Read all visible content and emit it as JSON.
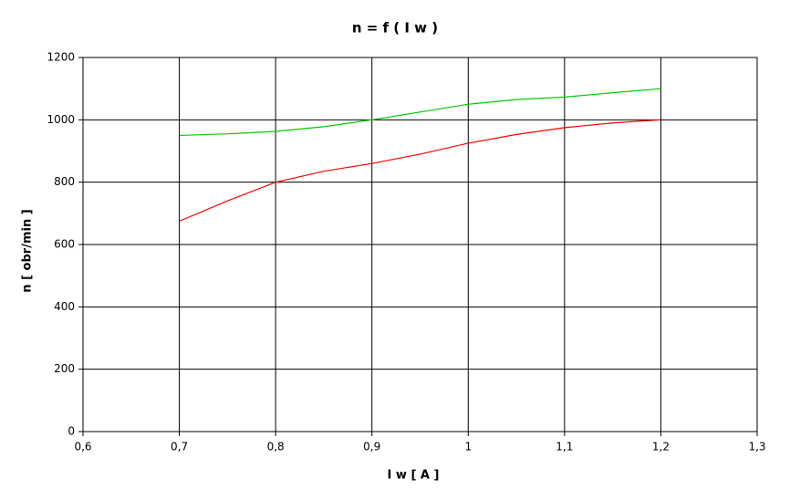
{
  "chart_data": {
    "type": "line",
    "title": "n = f ( I w )",
    "x_label": "I w [ A ]",
    "y_label": "n [ obr/min ]",
    "x": [
      0.7,
      0.75,
      0.8,
      0.85,
      0.9,
      0.95,
      1.0,
      1.05,
      1.1,
      1.15,
      1.2
    ],
    "series": [
      {
        "color": "#00cc00",
        "values": [
          950,
          955,
          963,
          978,
          1000,
          1025,
          1050,
          1065,
          1073,
          1087,
          1100
        ]
      },
      {
        "color": "#ff0000",
        "values": [
          675,
          740,
          800,
          835,
          860,
          890,
          925,
          953,
          975,
          990,
          1000
        ]
      }
    ],
    "xlim": [
      0.6,
      1.3
    ],
    "xticks": [
      {
        "value": 0.6,
        "label": "0,6"
      },
      {
        "value": 0.7,
        "label": "0,7"
      },
      {
        "value": 0.8,
        "label": "0,8"
      },
      {
        "value": 0.9,
        "label": "0,9"
      },
      1,
      {
        "value": 1.1,
        "label": "1,1"
      },
      {
        "value": 1.2,
        "label": "1,2"
      },
      {
        "value": 1.3,
        "label": "1,3"
      }
    ],
    "ylim": [
      0,
      1200
    ],
    "yticks": [
      0,
      200,
      400,
      600,
      800,
      1000,
      1200
    ],
    "grid": true
  }
}
